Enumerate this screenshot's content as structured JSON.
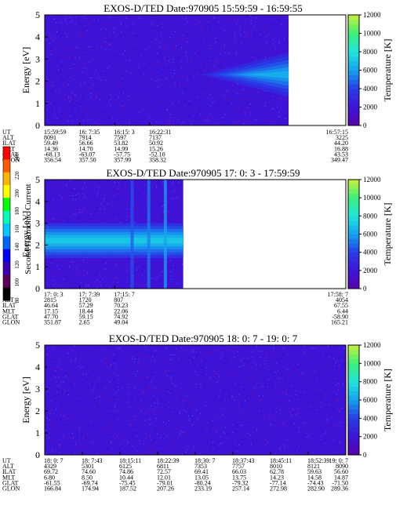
{
  "scale_bar": {
    "title": "Second Harmonic Current",
    "ticks": [
      "240",
      "220",
      "200",
      "180",
      "160",
      "140",
      "120",
      "100",
      "80"
    ],
    "colors": [
      "#ff0000",
      "#ff5a00",
      "#ffb400",
      "#ffff00",
      "#00ff00",
      "#00ffb4",
      "#00c8ff",
      "#0064ff",
      "#0000ff",
      "#3c00b4",
      "#5a005a",
      "#000000"
    ]
  },
  "chart_data": [
    {
      "type": "heatmap",
      "title": "EXOS-D/TED   Date:970905   15:59:59 - 16:59:55",
      "ylabel": "Energy [eV]",
      "ylim": [
        0,
        5
      ],
      "yticks": [
        "0",
        "1",
        "2",
        "3",
        "4",
        "5"
      ],
      "colorbar_label": "Temperature [K]",
      "colorbar_ticks": [
        "0",
        "2000",
        "4000",
        "6000",
        "8000",
        "10000",
        "12000"
      ],
      "colorbar_range": [
        0,
        12000
      ],
      "data_extent": [
        0,
        0.81
      ],
      "feature": {
        "type": "cone",
        "x_start": 0.52,
        "x_end": 0.81,
        "y_center": 2.3,
        "half_height": 1.0,
        "peak_temperature": 6500
      },
      "orbit_header": [
        "UT",
        "ALT",
        "ILAT",
        "MLT",
        "GLAT",
        "GLON"
      ],
      "orbit_columns": [
        {
          "UT": "15:59:59",
          "ALT": "8091",
          "ILAT": "59.49",
          "MLT": "14.36",
          "GLAT": "-68.13",
          "GLON": "356.54"
        },
        {
          "UT": "16: 7:35",
          "ALT": "7914",
          "ILAT": "56.66",
          "MLT": "14.70",
          "GLAT": "-63.07",
          "GLON": "357.50"
        },
        {
          "UT": "16:15: 3",
          "ALT": "7597",
          "ILAT": "53.82",
          "MLT": "14.99",
          "GLAT": "-57.75",
          "GLON": "357.99"
        },
        {
          "UT": "16:22:31",
          "ALT": "7137",
          "ILAT": "50.92",
          "MLT": "15.26",
          "GLAT": "-52.10",
          "GLON": "358.32"
        },
        {
          "UT": "16:57:15",
          "ALT": "3225",
          "ILAT": "44.20",
          "MLT": "16.88",
          "GLAT": "43.53",
          "GLON": "349.47"
        }
      ]
    },
    {
      "type": "heatmap",
      "title": "EXOS-D/TED   Date:970905   17: 0: 3 - 17:59:59",
      "ylabel": "Energy [eV]",
      "ylim": [
        0,
        5
      ],
      "yticks": [
        "0",
        "1",
        "2",
        "3",
        "4",
        "5"
      ],
      "colorbar_label": "Temperature [K]",
      "colorbar_ticks": [
        "0",
        "2000",
        "4000",
        "6000",
        "8000",
        "10000",
        "12000"
      ],
      "colorbar_range": [
        0,
        12000
      ],
      "data_extent": [
        0,
        0.46
      ],
      "feature": {
        "type": "band",
        "x_start": 0.0,
        "x_end": 0.46,
        "y_center": 2.2,
        "half_height": 0.8,
        "peak_temperature": 7200
      },
      "orbit_header": [
        "UT",
        "ALT",
        "ILAT",
        "MLT",
        "GLAT",
        "GLON"
      ],
      "orbit_columns": [
        {
          "UT": "17: 0: 3",
          "ALT": "2815",
          "ILAT": "46.64",
          "MLT": "17.15",
          "GLAT": "47.70",
          "GLON": "351.87"
        },
        {
          "UT": "17: 7:39",
          "ALT": "1720",
          "ILAT": "57.29",
          "MLT": "18.44",
          "GLAT": "59.15",
          "GLON": "2.65"
        },
        {
          "UT": "17:15: 7",
          "ALT": "807",
          "ILAT": "70.23",
          "MLT": "22.06",
          "GLAT": "74.92",
          "GLON": "49.04"
        },
        {
          "UT": "17:58: 7",
          "ALT": "4054",
          "ILAT": "67.55",
          "MLT": "6.44",
          "GLAT": "-58.90",
          "GLON": "165.21"
        }
      ]
    },
    {
      "type": "heatmap",
      "title": "EXOS-D/TED   Date:970905   18: 0: 7 - 19: 0: 7",
      "ylabel": "Energy [eV]",
      "ylim": [
        0,
        5
      ],
      "yticks": [
        "0",
        "1",
        "2",
        "3",
        "4",
        "5"
      ],
      "colorbar_label": "Temperature [K]",
      "colorbar_ticks": [
        "0",
        "2000",
        "4000",
        "6000",
        "8000",
        "10000",
        "12000"
      ],
      "colorbar_range": [
        0,
        12000
      ],
      "data_extent": [
        0,
        1.0
      ],
      "feature": null,
      "orbit_header": [
        "UT",
        "ALT",
        "ILAT",
        "MLT",
        "GLAT",
        "GLON"
      ],
      "orbit_columns": [
        {
          "UT": "18: 0: 7",
          "ALT": "4329",
          "ILAT": "69.72",
          "MLT": "6.80",
          "GLAT": "-61.55",
          "GLON": "166.84"
        },
        {
          "UT": "18: 7:43",
          "ALT": "5301",
          "ILAT": "74.60",
          "MLT": "8.50",
          "GLAT": "-69.74",
          "GLON": "174.94"
        },
        {
          "UT": "18:15:11",
          "ALT": "6125",
          "ILAT": "74.86",
          "MLT": "10.44",
          "GLAT": "-75.45",
          "GLON": "187.52"
        },
        {
          "UT": "18:22:39",
          "ALT": "6811",
          "ILAT": "72.57",
          "MLT": "12.01",
          "GLAT": "-79.01",
          "GLON": "207.26"
        },
        {
          "UT": "18:30: 7",
          "ALT": "7353",
          "ILAT": "69.41",
          "MLT": "13.05",
          "GLAT": "-80.24",
          "GLON": "233.19"
        },
        {
          "UT": "18:37:43",
          "ALT": "7757",
          "ILAT": "66.03",
          "MLT": "13.75",
          "GLAT": "-79.32",
          "GLON": "257.14"
        },
        {
          "UT": "18:45:11",
          "ALT": "8010",
          "ILAT": "62.78",
          "MLT": "14.23",
          "GLAT": "-77.14",
          "GLON": "272.98"
        },
        {
          "UT": "18:52:39",
          "ALT": "8121",
          "ILAT": "59.63",
          "MLT": "14.58",
          "GLAT": "-74.43",
          "GLON": "282.90"
        },
        {
          "UT": "19: 0: 7",
          "ALT": "8090",
          "ILAT": "56.60",
          "MLT": "14.87",
          "GLAT": "-71.50",
          "GLON": "289.36"
        }
      ]
    }
  ]
}
